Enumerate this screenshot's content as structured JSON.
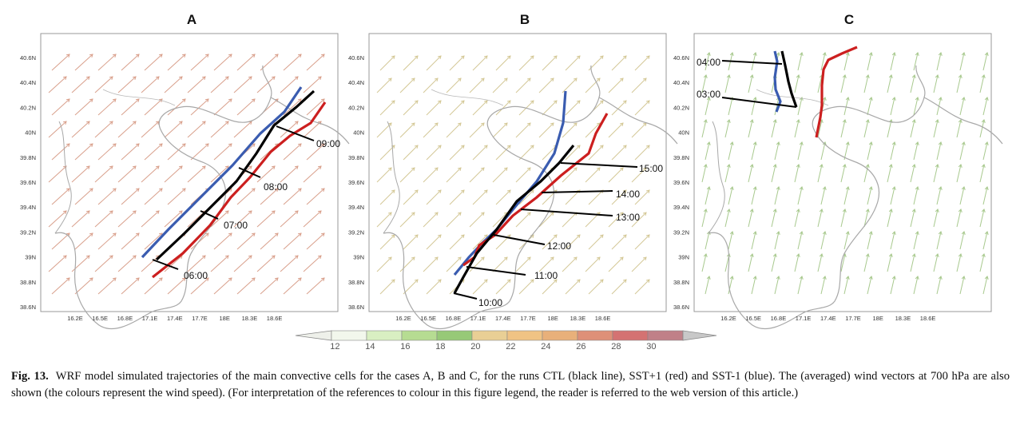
{
  "panels": [
    {
      "label": "A",
      "lat_ticks": [
        "40.6N",
        "40.4N",
        "40.2N",
        "40N",
        "39.8N",
        "39.6N",
        "39.4N",
        "39.2N",
        "39N",
        "38.8N",
        "38.6N"
      ],
      "lon_ticks": [
        "16.2E",
        "16.5E",
        "16.8E",
        "17.1E",
        "17.4E",
        "17.7E",
        "18E",
        "18.3E",
        "18.6E"
      ],
      "time_labels": [
        "09:00",
        "08:00",
        "07:00",
        "06:00"
      ],
      "wind_color": "#d9a08c"
    },
    {
      "label": "B",
      "lat_ticks": [
        "40.6N",
        "40.4N",
        "40.2N",
        "40N",
        "39.8N",
        "39.6N",
        "39.4N",
        "39.2N",
        "39N",
        "38.8N",
        "38.6N"
      ],
      "lon_ticks": [
        "16.2E",
        "16.5E",
        "16.8E",
        "17.1E",
        "17.4E",
        "17.7E",
        "18E",
        "18.3E",
        "18.6E"
      ],
      "time_labels": [
        "15:00",
        "14:00",
        "13:00",
        "12:00",
        "11:00",
        "10:00"
      ],
      "wind_color": "#d4c896"
    },
    {
      "label": "C",
      "lat_ticks": [
        "40.6N",
        "40.4N",
        "40.2N",
        "40N",
        "39.8N",
        "39.6N",
        "39.4N",
        "39.2N",
        "39N",
        "38.8N",
        "38.6N"
      ],
      "lon_ticks": [
        "16.2E",
        "16.5E",
        "16.8E",
        "17.1E",
        "17.4E",
        "17.7E",
        "18E",
        "18.3E",
        "18.6E"
      ],
      "time_labels": [
        "04:00",
        "03:00"
      ],
      "wind_color": "#a8c98e"
    }
  ],
  "colorbar": {
    "ticks": [
      "12",
      "14",
      "16",
      "18",
      "20",
      "22",
      "24",
      "26",
      "28",
      "30"
    ],
    "colors": [
      "#f2f7ec",
      "#d9efc2",
      "#b6dc92",
      "#97c977",
      "#e9cf95",
      "#f0c384",
      "#e8b07a",
      "#de9078",
      "#d47272",
      "#c08088"
    ]
  },
  "series_colors": {
    "CTL": "#000000",
    "SST+1": "#cc1f1f",
    "SST-1": "#3a5cb0"
  },
  "caption": {
    "label": "Fig. 13.",
    "text": "WRF model simulated trajectories of the main convective cells for the cases A, B and C, for the runs CTL (black line), SST+1 (red) and SST-1 (blue). The (averaged) wind vectors at 700 hPa are also shown (the colours represent the wind speed). (For interpretation of the references to colour in this figure legend, the reader is referred to the web version of this article.)"
  }
}
